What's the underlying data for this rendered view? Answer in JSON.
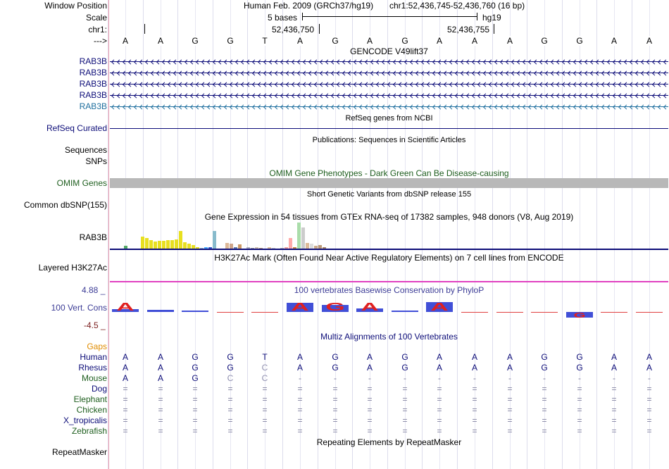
{
  "ruler": {
    "window_label": "Window Position",
    "assembly": "Human Feb. 2009 (GRCh37/hg19)",
    "position": "chr1:52,436,745-52,436,760 (16 bp)",
    "scale_label": "Scale",
    "scale_text": "5 bases",
    "db": "hg19",
    "chrom_label": "chr1:",
    "pos_left": "52,436,750",
    "pos_right": "52,436,755",
    "strand_label": "--->",
    "bases": [
      "A",
      "A",
      "G",
      "G",
      "T",
      "A",
      "G",
      "A",
      "G",
      "A",
      "A",
      "A",
      "G",
      "G",
      "A",
      "A"
    ]
  },
  "gencode": {
    "title": "GENCODE V49lift37",
    "rows": [
      {
        "name": "RAB3B",
        "color": "#0c0c78"
      },
      {
        "name": "RAB3B",
        "color": "#0c0c78"
      },
      {
        "name": "RAB3B",
        "color": "#0c0c78"
      },
      {
        "name": "RAB3B",
        "color": "#0c0c78"
      },
      {
        "name": "RAB3B",
        "color": "#1e6e9e"
      }
    ]
  },
  "refseq": {
    "title": "RefSeq genes from NCBI",
    "label": "RefSeq Curated"
  },
  "publications": {
    "title": "Publications: Sequences in Scientific Articles",
    "label1": "Sequences",
    "label2": "SNPs"
  },
  "omim": {
    "title": "OMIM Gene Phenotypes - Dark Green Can Be Disease-causing",
    "label": "OMIM Genes"
  },
  "dbsnp": {
    "title": "Short Genetic Variants from dbSNP release 155",
    "label": "Common dbSNP(155)"
  },
  "gtex": {
    "title": "Gene Expression in 54 tissues from GTEx RNA-seq of 17382 samples, 948 donors (V8, Aug 2019)",
    "label": "RAB3B",
    "bars": [
      {
        "v": 0.02,
        "c": "#a0a0a0"
      },
      {
        "v": 0.18,
        "c": "#55aa66"
      },
      {
        "v": 0.04,
        "c": "#d0d0d0"
      },
      {
        "v": 0.03,
        "c": "#cccccc"
      },
      {
        "v": 0.05,
        "c": "#a0a0a0"
      },
      {
        "v": 0.68,
        "c": "#e8e020"
      },
      {
        "v": 0.62,
        "c": "#e8e020"
      },
      {
        "v": 0.48,
        "c": "#e8e020"
      },
      {
        "v": 0.42,
        "c": "#e8e020"
      },
      {
        "v": 0.44,
        "c": "#e8e020"
      },
      {
        "v": 0.47,
        "c": "#e8e020"
      },
      {
        "v": 0.5,
        "c": "#e8e020"
      },
      {
        "v": 0.5,
        "c": "#e8e020"
      },
      {
        "v": 0.52,
        "c": "#e8e020"
      },
      {
        "v": 1.0,
        "c": "#e8e020"
      },
      {
        "v": 0.38,
        "c": "#e8e020"
      },
      {
        "v": 0.3,
        "c": "#e8e020"
      },
      {
        "v": 0.22,
        "c": "#e8e020"
      },
      {
        "v": 0.12,
        "c": "#e8e020"
      },
      {
        "v": 0.06,
        "c": "#a0c0d0"
      },
      {
        "v": 0.1,
        "c": "#44aaff"
      },
      {
        "v": 0.1,
        "c": "#3355cc"
      },
      {
        "v": 1.0,
        "c": "#88bbcc"
      },
      {
        "v": 0.0,
        "c": "#ffffff"
      },
      {
        "v": 0.0,
        "c": "#ffffff"
      },
      {
        "v": 0.35,
        "c": "#ddb898"
      },
      {
        "v": 0.3,
        "c": "#cfa58a"
      },
      {
        "v": 0.1,
        "c": "#6680aa"
      },
      {
        "v": 0.26,
        "c": "#cc9966"
      },
      {
        "v": 0.05,
        "c": "#334488"
      },
      {
        "v": 0.1,
        "c": "#b0b0c0"
      },
      {
        "v": 0.06,
        "c": "#a0a0a0"
      },
      {
        "v": 0.12,
        "c": "#d0c0b0"
      },
      {
        "v": 0.06,
        "c": "#c0a080"
      },
      {
        "v": 0.0,
        "c": "#ffffff"
      },
      {
        "v": 0.1,
        "c": "#e0c0a0"
      },
      {
        "v": 0.08,
        "c": "#cccccc"
      },
      {
        "v": 0.0,
        "c": "#ffffff"
      },
      {
        "v": 0.06,
        "c": "#bbbbbb"
      },
      {
        "v": 0.12,
        "c": "#f0a0a0"
      },
      {
        "v": 0.6,
        "c": "#ffaaaa"
      },
      {
        "v": 0.12,
        "c": "#cc8844"
      },
      {
        "v": 1.45,
        "c": "#aaddaa"
      },
      {
        "v": 1.2,
        "c": "#cccccc"
      },
      {
        "v": 0.35,
        "c": "#ddbb99"
      },
      {
        "v": 0.3,
        "c": "#dddddd"
      },
      {
        "v": 0.18,
        "c": "#ccaa88"
      },
      {
        "v": 0.22,
        "c": "#bb9977"
      },
      {
        "v": 0.1,
        "c": "#aa8866"
      },
      {
        "v": 0.0,
        "c": "#ffffff"
      }
    ]
  },
  "h3k27ac": {
    "title": "H3K27Ac Mark (Often Found Near Active Regulatory Elements) on 7 cell lines from ENCODE",
    "label": "Layered H3K27Ac"
  },
  "phylop": {
    "title": "100 vertebrates Basewise Conservation by PhyloP",
    "label": "100 Vert. Cons",
    "max_label": "4.88 _",
    "min_label": "-4.5 _",
    "bases": [
      "A",
      "",
      "",
      "",
      "",
      "A",
      "G",
      "A",
      "",
      "A",
      "",
      "",
      "",
      "G",
      "",
      ""
    ],
    "scores": [
      0.8,
      0.5,
      0.2,
      0.1,
      0.0,
      2.5,
      1.8,
      1.0,
      0.2,
      2.6,
      0.1,
      0.1,
      0.0,
      -0.8,
      0.0,
      0.1
    ]
  },
  "multiz": {
    "title": "Multiz Alignments of 100 Vertebrates",
    "gaps_label": "Gaps",
    "species": [
      {
        "name": "Human",
        "color": "#0c0c78",
        "seq": [
          "A",
          "A",
          "G",
          "G",
          "T",
          "A",
          "G",
          "A",
          "G",
          "A",
          "A",
          "A",
          "G",
          "G",
          "A",
          "A"
        ]
      },
      {
        "name": "Rhesus",
        "color": "#0c0c78",
        "seq": [
          "A",
          "A",
          "G",
          "G",
          "C",
          "A",
          "G",
          "A",
          "G",
          "A",
          "A",
          "A",
          "G",
          "G",
          "A",
          "A"
        ]
      },
      {
        "name": "Mouse",
        "color": "#1e5e1e",
        "seq": [
          "A",
          "A",
          "G",
          "C",
          "C",
          "-",
          "-",
          "-",
          "-",
          "-",
          "-",
          "-",
          "-",
          "-",
          "-",
          "-"
        ]
      },
      {
        "name": "Dog",
        "color": "#0c0c78",
        "seq": [
          "=",
          "=",
          "=",
          "=",
          "=",
          "=",
          "=",
          "=",
          "=",
          "=",
          "=",
          "=",
          "=",
          "=",
          "=",
          "="
        ]
      },
      {
        "name": "Elephant",
        "color": "#1e5e1e",
        "seq": [
          "=",
          "=",
          "=",
          "=",
          "=",
          "=",
          "=",
          "=",
          "=",
          "=",
          "=",
          "=",
          "=",
          "=",
          "=",
          "="
        ]
      },
      {
        "name": "Chicken",
        "color": "#1e5e1e",
        "seq": [
          "=",
          "=",
          "=",
          "=",
          "=",
          "=",
          "=",
          "=",
          "=",
          "=",
          "=",
          "=",
          "=",
          "=",
          "=",
          "="
        ]
      },
      {
        "name": "X_tropicalis",
        "color": "#0c0c78",
        "seq": [
          "=",
          "=",
          "=",
          "=",
          "=",
          "=",
          "=",
          "=",
          "=",
          "=",
          "=",
          "=",
          "=",
          "=",
          "=",
          "="
        ]
      },
      {
        "name": "Zebrafish",
        "color": "#1e5e1e",
        "seq": [
          "=",
          "=",
          "=",
          "=",
          "=",
          "=",
          "=",
          "=",
          "=",
          "=",
          "=",
          "=",
          "=",
          "=",
          "=",
          "="
        ]
      }
    ]
  },
  "repeatmasker": {
    "title": "Repeating Elements by RepeatMasker",
    "label": "RepeatMasker"
  }
}
